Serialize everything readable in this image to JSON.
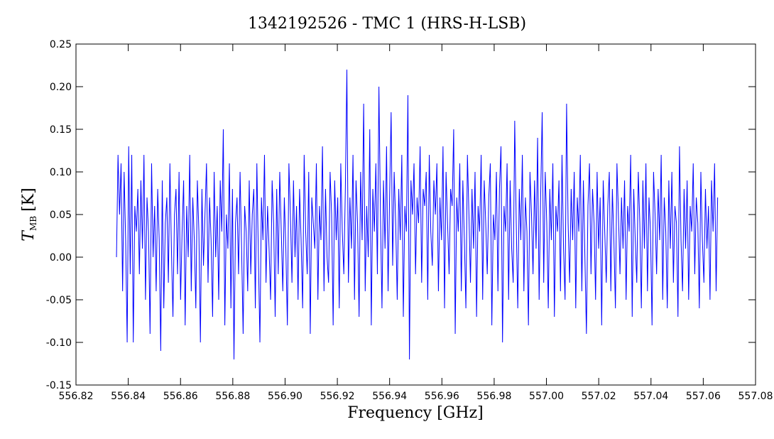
{
  "chart_data": {
    "type": "line",
    "title": "1342192526 - TMC 1 (HRS-H-LSB)",
    "xlabel": "Frequency [GHz]",
    "ylabel": {
      "symbol": "T",
      "subscript": "MB",
      "unit": "[K]"
    },
    "xlim": [
      556.82,
      557.08
    ],
    "ylim": [
      -0.15,
      0.25
    ],
    "xticks": [
      556.82,
      556.84,
      556.86,
      556.88,
      556.9,
      556.92,
      556.94,
      556.96,
      556.98,
      557.0,
      557.02,
      557.04,
      557.06,
      557.08
    ],
    "xtick_labels": [
      "556.82",
      "556.84",
      "556.86",
      "556.88",
      "556.90",
      "556.92",
      "556.94",
      "556.96",
      "556.98",
      "557.00",
      "557.02",
      "557.04",
      "557.06",
      "557.08"
    ],
    "yticks": [
      -0.15,
      -0.1,
      -0.05,
      0.0,
      0.05,
      0.1,
      0.15,
      0.2,
      0.25
    ],
    "ytick_labels": [
      "-0.15",
      "-0.10",
      "-0.05",
      "0.00",
      "0.05",
      "0.10",
      "0.15",
      "0.20",
      "0.25"
    ],
    "grid": false,
    "series": [
      {
        "color": "#0000ff",
        "x_start": 556.8355,
        "x_end": 557.0655,
        "values": [
          0.0,
          0.12,
          0.05,
          0.11,
          -0.04,
          0.1,
          0.02,
          -0.1,
          0.13,
          -0.02,
          0.12,
          -0.1,
          0.06,
          0.03,
          0.08,
          -0.02,
          0.09,
          0.01,
          0.12,
          -0.05,
          0.07,
          0.03,
          -0.09,
          0.11,
          0.0,
          0.06,
          -0.04,
          0.08,
          0.02,
          -0.11,
          0.09,
          -0.06,
          0.04,
          0.07,
          -0.03,
          0.11,
          0.01,
          -0.07,
          0.05,
          0.08,
          -0.02,
          0.1,
          -0.05,
          0.03,
          0.09,
          -0.08,
          0.06,
          0.0,
          0.12,
          -0.04,
          0.07,
          0.02,
          -0.06,
          0.09,
          0.03,
          -0.1,
          0.08,
          -0.01,
          0.05,
          0.11,
          -0.03,
          0.07,
          0.02,
          -0.07,
          0.1,
          0.0,
          0.06,
          -0.05,
          0.09,
          0.03,
          0.15,
          -0.08,
          0.05,
          0.01,
          0.11,
          -0.06,
          0.08,
          -0.12,
          0.04,
          0.07,
          -0.02,
          0.1,
          0.01,
          -0.09,
          0.06,
          0.03,
          -0.04,
          0.09,
          -0.02,
          0.05,
          0.08,
          -0.06,
          0.11,
          0.0,
          -0.1,
          0.07,
          0.02,
          0.12,
          -0.03,
          0.06,
          0.01,
          -0.05,
          0.09,
          0.04,
          -0.07,
          0.08,
          -0.02,
          0.1,
          0.03,
          -0.04,
          0.07,
          0.01,
          -0.08,
          0.11,
          0.05,
          -0.03,
          0.09,
          0.0,
          0.06,
          -0.05,
          0.08,
          0.02,
          -0.06,
          0.12,
          0.03,
          -0.02,
          0.1,
          -0.09,
          0.07,
          0.04,
          0.01,
          0.11,
          -0.05,
          0.06,
          0.02,
          0.13,
          -0.04,
          0.08,
          0.0,
          -0.03,
          0.1,
          0.05,
          -0.08,
          0.09,
          0.02,
          0.07,
          -0.06,
          0.11,
          0.03,
          -0.02,
          0.08,
          0.22,
          -0.03,
          0.07,
          0.01,
          0.12,
          -0.05,
          0.09,
          0.04,
          -0.07,
          0.1,
          0.02,
          0.18,
          -0.04,
          0.06,
          0.0,
          0.15,
          -0.08,
          0.08,
          0.03,
          0.11,
          -0.02,
          0.2,
          0.05,
          -0.06,
          0.09,
          0.01,
          0.13,
          -0.04,
          0.07,
          0.17,
          -0.01,
          0.1,
          0.04,
          -0.05,
          0.08,
          0.02,
          0.12,
          -0.07,
          0.06,
          0.03,
          0.19,
          -0.12,
          0.09,
          0.05,
          0.11,
          -0.02,
          0.07,
          0.04,
          0.13,
          -0.03,
          0.08,
          0.06,
          0.1,
          -0.05,
          0.12,
          0.03,
          -0.01,
          0.09,
          0.05,
          0.11,
          -0.04,
          0.07,
          0.02,
          0.13,
          -0.06,
          0.1,
          0.04,
          -0.02,
          0.08,
          0.06,
          0.15,
          -0.09,
          0.07,
          0.03,
          0.11,
          -0.04,
          0.09,
          0.02,
          -0.06,
          0.12,
          0.05,
          -0.03,
          0.08,
          0.01,
          0.1,
          -0.07,
          0.06,
          0.03,
          0.12,
          -0.05,
          0.09,
          0.04,
          -0.02,
          0.07,
          0.11,
          -0.08,
          0.05,
          0.02,
          0.1,
          -0.04,
          0.08,
          0.13,
          -0.1,
          0.06,
          0.03,
          0.11,
          -0.05,
          0.09,
          0.01,
          -0.03,
          0.16,
          0.04,
          -0.06,
          0.08,
          0.02,
          0.12,
          -0.04,
          0.07,
          0.03,
          -0.08,
          0.1,
          0.05,
          -0.02,
          0.09,
          0.01,
          0.14,
          -0.05,
          0.07,
          0.17,
          -0.03,
          0.1,
          0.04,
          -0.06,
          0.08,
          0.02,
          0.11,
          -0.07,
          0.06,
          0.03,
          0.09,
          -0.04,
          0.12,
          0.01,
          -0.05,
          0.18,
          0.04,
          -0.03,
          0.08,
          0.02,
          0.1,
          -0.06,
          0.07,
          0.03,
          0.12,
          -0.04,
          0.09,
          0.0,
          -0.09,
          0.06,
          0.11,
          -0.02,
          0.08,
          0.04,
          -0.05,
          0.1,
          0.01,
          0.07,
          -0.08,
          0.09,
          0.03,
          -0.03,
          0.06,
          0.1,
          -0.04,
          0.08,
          0.02,
          -0.06,
          0.11,
          0.05,
          -0.02,
          0.07,
          0.01,
          0.09,
          -0.05,
          0.06,
          0.03,
          0.12,
          -0.07,
          0.08,
          0.02,
          -0.03,
          0.1,
          0.04,
          -0.06,
          0.09,
          0.01,
          0.11,
          -0.04,
          0.07,
          0.03,
          -0.08,
          0.1,
          0.05,
          -0.02,
          0.08,
          0.02,
          0.12,
          -0.05,
          0.07,
          0.03,
          -0.06,
          0.09,
          0.01,
          0.1,
          -0.03,
          0.06,
          0.04,
          -0.07,
          0.13,
          0.02,
          -0.04,
          0.08,
          0.01,
          0.09,
          -0.05,
          0.06,
          0.03,
          0.11,
          -0.02,
          0.07,
          0.04,
          -0.06,
          0.1,
          0.02,
          -0.03,
          0.08,
          0.01,
          0.06,
          -0.05,
          0.09,
          0.03,
          0.11,
          -0.04,
          0.07
        ]
      }
    ]
  }
}
